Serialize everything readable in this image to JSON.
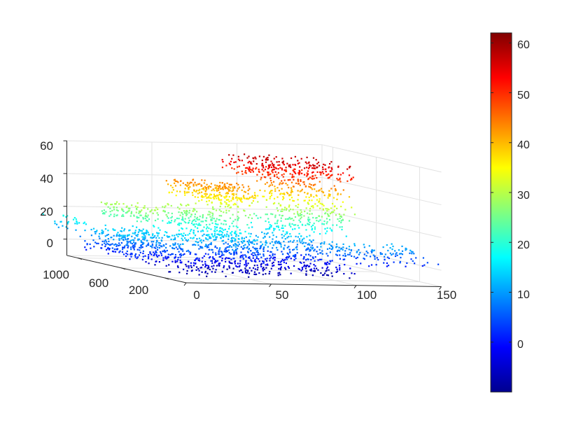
{
  "chart_data": {
    "type": "scatter3d",
    "title": "",
    "xlabel": "",
    "ylabel": "",
    "zlabel": "",
    "grid": true,
    "colormap": "jet",
    "colorbar": {
      "location": "right",
      "range": [
        -10,
        62
      ],
      "ticks": [
        0,
        10,
        20,
        30,
        40,
        50,
        60
      ],
      "tick_labels": [
        "0",
        "10",
        "20",
        "30",
        "40",
        "50",
        "60"
      ]
    },
    "x_axis": {
      "range": [
        0,
        150
      ],
      "ticks": [
        0,
        50,
        100,
        150
      ],
      "tick_labels": [
        "0",
        "50",
        "100",
        "150"
      ]
    },
    "y_axis": {
      "range": [
        0,
        1100
      ],
      "ticks": [
        200,
        600,
        1000
      ],
      "tick_labels": [
        "200",
        "600",
        "1000"
      ]
    },
    "z_axis": {
      "range": [
        -10,
        60
      ],
      "ticks": [
        0,
        20,
        40,
        60
      ],
      "tick_labels": [
        "0",
        "20",
        "40",
        "60"
      ]
    },
    "point_clusters": [
      {
        "x_range": [
          -25,
          -15
        ],
        "y_range": [
          600,
          1000
        ],
        "z_range": [
          10,
          20
        ],
        "count": 30
      },
      {
        "x_range": [
          -20,
          15
        ],
        "y_range": [
          200,
          700
        ],
        "z_range": [
          0,
          15
        ],
        "count": 320
      },
      {
        "x_range": [
          -10,
          10
        ],
        "y_range": [
          300,
          700
        ],
        "z_range": [
          22,
          30
        ],
        "count": 110
      },
      {
        "x_range": [
          5,
          55
        ],
        "y_range": [
          100,
          500
        ],
        "z_range": [
          -8,
          18
        ],
        "count": 380
      },
      {
        "x_range": [
          20,
          40
        ],
        "y_range": [
          300,
          600
        ],
        "z_range": [
          18,
          30
        ],
        "count": 110
      },
      {
        "x_range": [
          30,
          65
        ],
        "y_range": [
          300,
          700
        ],
        "z_range": [
          35,
          44
        ],
        "count": 220
      },
      {
        "x_range": [
          40,
          60
        ],
        "y_range": [
          300,
          600
        ],
        "z_range": [
          10,
          38
        ],
        "count": 160
      },
      {
        "x_range": [
          50,
          110
        ],
        "y_range": [
          100,
          600
        ],
        "z_range": [
          -8,
          12
        ],
        "count": 430
      },
      {
        "x_range": [
          70,
          120
        ],
        "y_range": [
          300,
          800
        ],
        "z_range": [
          48,
          58
        ],
        "count": 280
      },
      {
        "x_range": [
          80,
          100
        ],
        "y_range": [
          300,
          700
        ],
        "z_range": [
          10,
          48
        ],
        "count": 240
      },
      {
        "x_range": [
          100,
          120
        ],
        "y_range": [
          300,
          600
        ],
        "z_range": [
          15,
          45
        ],
        "count": 160
      },
      {
        "x_range": [
          100,
          150
        ],
        "y_range": [
          0,
          300
        ],
        "z_range": [
          0,
          12
        ],
        "count": 110
      }
    ]
  }
}
